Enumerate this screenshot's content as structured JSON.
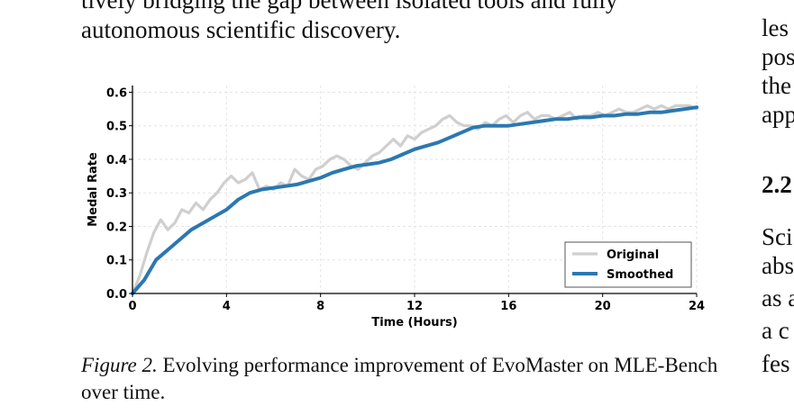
{
  "body_text": {
    "line1": "tively bridging the gap between isolated tools and fully",
    "line2": "autonomous scientific discovery."
  },
  "right_column": {
    "lines": [
      "les",
      "pos",
      "the",
      "app"
    ],
    "section_heading": "2.2",
    "lines2": [
      "Sci",
      "abs",
      "as a",
      "a c",
      "fes"
    ]
  },
  "caption": {
    "label": "Figure 2.",
    "text": "Evolving performance improvement of EvoMaster on MLE-Bench over time."
  },
  "chart_data": {
    "type": "line",
    "title": "",
    "xlabel": "Time (Hours)",
    "ylabel": "Medal Rate",
    "xlim": [
      0,
      24
    ],
    "ylim": [
      0,
      0.62
    ],
    "xticks": [
      0,
      4,
      8,
      12,
      16,
      20,
      24
    ],
    "yticks": [
      0.0,
      0.1,
      0.2,
      0.3,
      0.4,
      0.5,
      0.6
    ],
    "grid": true,
    "legend_position": "bottom-right",
    "series": [
      {
        "name": "Original",
        "color": "#cfcfcf",
        "x": [
          0,
          0.3,
          0.6,
          0.9,
          1.2,
          1.5,
          1.8,
          2.1,
          2.4,
          2.7,
          3.0,
          3.3,
          3.6,
          3.9,
          4.2,
          4.5,
          4.8,
          5.1,
          5.4,
          5.7,
          6.0,
          6.3,
          6.6,
          6.9,
          7.2,
          7.5,
          7.8,
          8.1,
          8.4,
          8.7,
          9.0,
          9.3,
          9.6,
          9.9,
          10.2,
          10.5,
          10.8,
          11.1,
          11.4,
          11.7,
          12.0,
          12.3,
          12.6,
          12.9,
          13.2,
          13.5,
          13.8,
          14.1,
          14.4,
          14.7,
          15.0,
          15.3,
          15.6,
          15.9,
          16.2,
          16.5,
          16.8,
          17.1,
          17.4,
          17.7,
          18.0,
          18.3,
          18.6,
          18.9,
          19.2,
          19.5,
          19.8,
          20.1,
          20.4,
          20.7,
          21.0,
          21.3,
          21.6,
          21.9,
          22.2,
          22.5,
          22.8,
          23.1,
          23.4,
          23.7,
          24.0
        ],
        "values": [
          0.0,
          0.05,
          0.12,
          0.18,
          0.22,
          0.19,
          0.21,
          0.25,
          0.24,
          0.27,
          0.25,
          0.28,
          0.3,
          0.33,
          0.35,
          0.33,
          0.34,
          0.36,
          0.31,
          0.32,
          0.31,
          0.33,
          0.32,
          0.37,
          0.35,
          0.34,
          0.37,
          0.38,
          0.4,
          0.41,
          0.4,
          0.38,
          0.37,
          0.39,
          0.41,
          0.42,
          0.44,
          0.46,
          0.44,
          0.47,
          0.46,
          0.48,
          0.49,
          0.5,
          0.52,
          0.53,
          0.51,
          0.5,
          0.5,
          0.49,
          0.51,
          0.5,
          0.52,
          0.53,
          0.51,
          0.53,
          0.54,
          0.52,
          0.53,
          0.53,
          0.52,
          0.53,
          0.54,
          0.52,
          0.53,
          0.53,
          0.54,
          0.53,
          0.54,
          0.55,
          0.54,
          0.54,
          0.55,
          0.56,
          0.55,
          0.56,
          0.55,
          0.56,
          0.56,
          0.56,
          0.55
        ]
      },
      {
        "name": "Smoothed",
        "color": "#2b78b1",
        "x": [
          0,
          0.5,
          1.0,
          1.5,
          2.0,
          2.5,
          3.0,
          3.5,
          4.0,
          4.5,
          5.0,
          5.5,
          6.0,
          6.5,
          7.0,
          7.5,
          8.0,
          8.5,
          9.0,
          9.5,
          10.0,
          10.5,
          11.0,
          11.5,
          12.0,
          12.5,
          13.0,
          13.5,
          14.0,
          14.5,
          15.0,
          15.5,
          16.0,
          16.5,
          17.0,
          17.5,
          18.0,
          18.5,
          19.0,
          19.5,
          20.0,
          20.5,
          21.0,
          21.5,
          22.0,
          22.5,
          23.0,
          23.5,
          24.0
        ],
        "values": [
          0.0,
          0.04,
          0.1,
          0.13,
          0.16,
          0.19,
          0.21,
          0.23,
          0.25,
          0.28,
          0.3,
          0.31,
          0.315,
          0.32,
          0.325,
          0.335,
          0.345,
          0.36,
          0.37,
          0.38,
          0.385,
          0.39,
          0.4,
          0.415,
          0.43,
          0.44,
          0.45,
          0.465,
          0.48,
          0.495,
          0.5,
          0.5,
          0.5,
          0.505,
          0.51,
          0.515,
          0.52,
          0.52,
          0.525,
          0.525,
          0.53,
          0.53,
          0.535,
          0.535,
          0.54,
          0.54,
          0.545,
          0.55,
          0.555
        ]
      }
    ]
  }
}
